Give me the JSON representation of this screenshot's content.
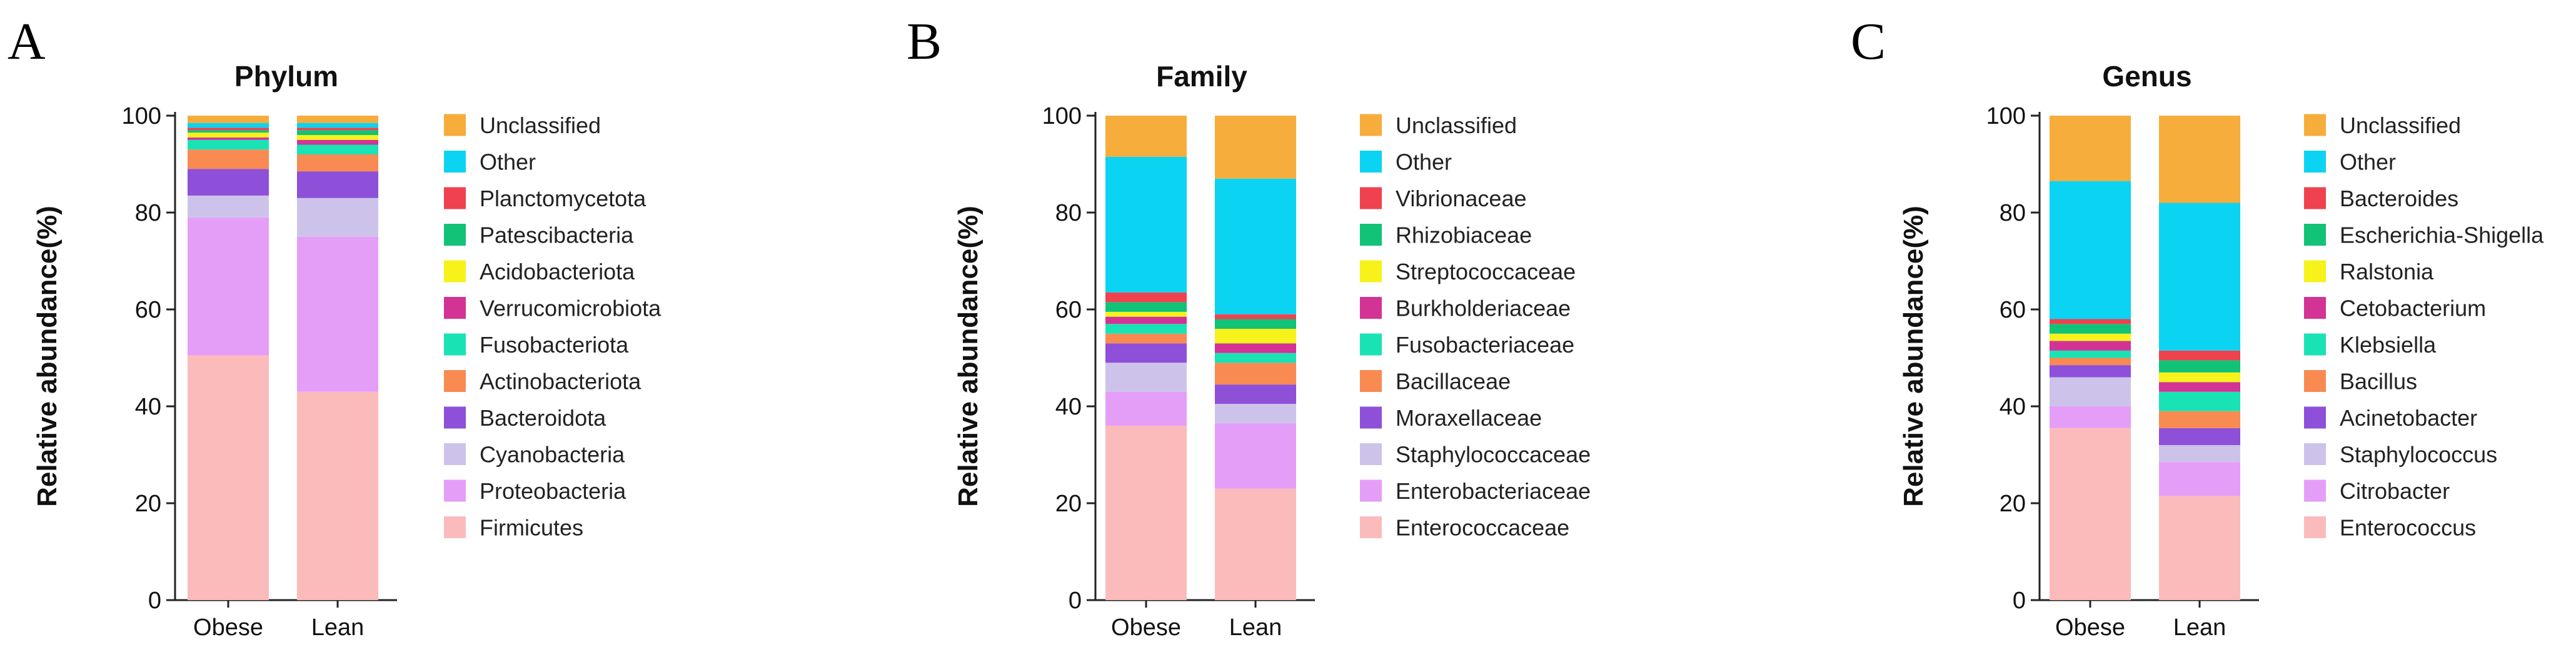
{
  "colors": {
    "Unclassified": "#f6ad3b",
    "Other": "#0bd3f2",
    "c10": "#f0414f",
    "c9": "#11c277",
    "c8": "#f6f21a",
    "c7": "#d23395",
    "c6": "#19e3b4",
    "c5": "#f88a52",
    "c4": "#8e4fd9",
    "c3": "#cdc3ea",
    "c2": "#e59ef8",
    "c1": "#fcbbbb"
  },
  "chart_data": [
    {
      "panel": "A",
      "type": "bar",
      "stacked": true,
      "title": "Phylum",
      "ylabel": "Relative abundance(%)",
      "xlabel": "",
      "ylim": [
        0,
        100
      ],
      "yticks": [
        "0",
        "20",
        "40",
        "60",
        "80",
        "100"
      ],
      "categories": [
        "Obese",
        "Lean"
      ],
      "series": [
        {
          "name": "Firmicutes",
          "color_key": "c1",
          "values": [
            50.5,
            43
          ]
        },
        {
          "name": "Proteobacteria",
          "color_key": "c2",
          "values": [
            28.5,
            32
          ]
        },
        {
          "name": "Cyanobacteria",
          "color_key": "c3",
          "values": [
            4.5,
            8
          ]
        },
        {
          "name": "Bacteroidota",
          "color_key": "c4",
          "values": [
            5.5,
            5.5
          ]
        },
        {
          "name": "Actinobacteriota",
          "color_key": "c5",
          "values": [
            4,
            3.5
          ]
        },
        {
          "name": "Fusobacteriota",
          "color_key": "c6",
          "values": [
            2,
            2
          ]
        },
        {
          "name": "Verrucomicrobiota",
          "color_key": "c7",
          "values": [
            0.5,
            1
          ]
        },
        {
          "name": "Acidobacteriota",
          "color_key": "c8",
          "values": [
            1,
            1
          ]
        },
        {
          "name": "Patescibacteria",
          "color_key": "c9",
          "values": [
            0.5,
            1
          ]
        },
        {
          "name": "Planctomycetota",
          "color_key": "c10",
          "values": [
            0.5,
            0.5
          ]
        },
        {
          "name": "Other",
          "color_key": "Other",
          "values": [
            1,
            1
          ]
        },
        {
          "name": "Unclassified",
          "color_key": "Unclassified",
          "values": [
            1.5,
            1.5
          ]
        }
      ]
    },
    {
      "panel": "B",
      "type": "bar",
      "stacked": true,
      "title": "Family",
      "ylabel": "Relative abundance(%)",
      "xlabel": "",
      "ylim": [
        0,
        100
      ],
      "yticks": [
        "0",
        "20",
        "40",
        "60",
        "80",
        "100"
      ],
      "categories": [
        "Obese",
        "Lean"
      ],
      "series": [
        {
          "name": "Enterococcaceae",
          "color_key": "c1",
          "values": [
            36,
            23
          ]
        },
        {
          "name": "Enterobacteriaceae",
          "color_key": "c2",
          "values": [
            7,
            13.5
          ]
        },
        {
          "name": "Staphylococcaceae",
          "color_key": "c3",
          "values": [
            6,
            4
          ]
        },
        {
          "name": "Moraxellaceae",
          "color_key": "c4",
          "values": [
            4,
            4
          ]
        },
        {
          "name": "Bacillaceae",
          "color_key": "c5",
          "values": [
            2,
            4.5
          ]
        },
        {
          "name": "Fusobacteriaceae",
          "color_key": "c6",
          "values": [
            2,
            2
          ]
        },
        {
          "name": "Burkholderiaceae",
          "color_key": "c7",
          "values": [
            1.5,
            2
          ]
        },
        {
          "name": "Streptococcaceae",
          "color_key": "c8",
          "values": [
            1,
            3
          ]
        },
        {
          "name": "Rhizobiaceae",
          "color_key": "c9",
          "values": [
            2,
            2
          ]
        },
        {
          "name": "Vibrionaceae",
          "color_key": "c10",
          "values": [
            2,
            1
          ]
        },
        {
          "name": "Other",
          "color_key": "Other",
          "values": [
            28,
            28
          ]
        },
        {
          "name": "Unclassified",
          "color_key": "Unclassified",
          "values": [
            8.5,
            13
          ]
        }
      ]
    },
    {
      "panel": "C",
      "type": "bar",
      "stacked": true,
      "title": "Genus",
      "ylabel": "Relative abundance(%)",
      "xlabel": "",
      "ylim": [
        0,
        100
      ],
      "yticks": [
        "0",
        "20",
        "40",
        "60",
        "80",
        "100"
      ],
      "categories": [
        "Obese",
        "Lean"
      ],
      "series": [
        {
          "name": "Enterococcus",
          "color_key": "c1",
          "values": [
            35.5,
            21.5
          ]
        },
        {
          "name": "Citrobacter",
          "color_key": "c2",
          "values": [
            4.5,
            7
          ]
        },
        {
          "name": "Staphylococcus",
          "color_key": "c3",
          "values": [
            6,
            3.5
          ]
        },
        {
          "name": "Acinetobacter",
          "color_key": "c4",
          "values": [
            2.5,
            3.5
          ]
        },
        {
          "name": "Bacillus",
          "color_key": "c5",
          "values": [
            1.5,
            3.5
          ]
        },
        {
          "name": "Klebsiella",
          "color_key": "c6",
          "values": [
            1.5,
            4
          ]
        },
        {
          "name": "Cetobacterium",
          "color_key": "c7",
          "values": [
            2,
            2
          ]
        },
        {
          "name": "Ralstonia",
          "color_key": "c8",
          "values": [
            1.5,
            2
          ]
        },
        {
          "name": "Escherichia-Shigella",
          "color_key": "c9",
          "values": [
            2,
            2.5
          ]
        },
        {
          "name": "Bacteroides",
          "color_key": "c10",
          "values": [
            1,
            2
          ]
        },
        {
          "name": "Other",
          "color_key": "Other",
          "values": [
            28.5,
            30.5
          ]
        },
        {
          "name": "Unclassified",
          "color_key": "Unclassified",
          "values": [
            13.5,
            18
          ]
        }
      ]
    }
  ]
}
